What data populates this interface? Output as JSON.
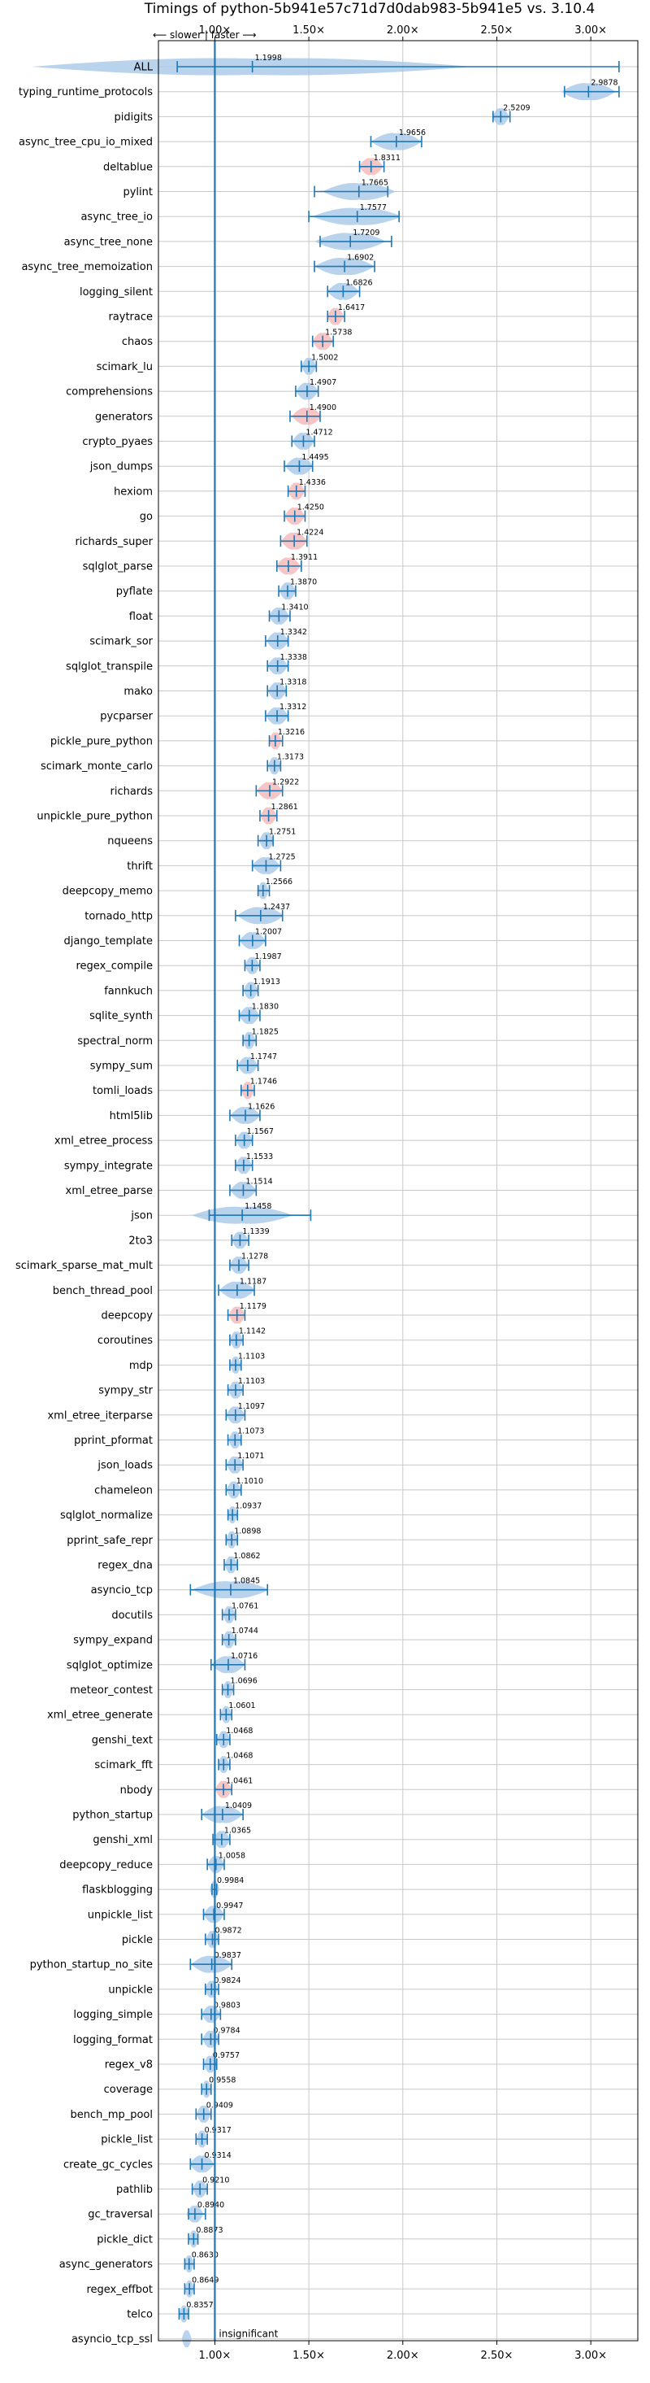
{
  "chart_data": {
    "type": "violin",
    "title": "Timings of python-5b941e57c71d7d0dab983-5b941e5 vs. 3.10.4",
    "direction_note": "⟵ slower | faster ⟶",
    "xlim": [
      0.7,
      3.25
    ],
    "xticks": [
      1.0,
      1.5,
      2.0,
      2.5,
      3.0
    ],
    "xtick_labels": [
      "1.00×",
      "1.50×",
      "2.00×",
      "2.50×",
      "3.00×"
    ],
    "grid": true,
    "colors": {
      "violin": "#a8c8e8",
      "violin_highlight": "#f4b8b8",
      "whisker": "#1f77b4",
      "baseline": "#1f77b4",
      "grid": "#c8c8c8"
    },
    "annotations": [
      {
        "benchmark": "asyncio_tcp_ssl",
        "text": "insignificant"
      }
    ],
    "benchmarks": [
      {
        "name": "ALL",
        "value": 1.1998,
        "min": 0.8,
        "max": 3.15,
        "highlight": false
      },
      {
        "name": "typing_runtime_protocols",
        "value": 2.9878,
        "min": 2.86,
        "max": 3.15,
        "highlight": false
      },
      {
        "name": "pidigits",
        "value": 2.5209,
        "min": 2.48,
        "max": 2.57,
        "highlight": false
      },
      {
        "name": "async_tree_cpu_io_mixed",
        "value": 1.9656,
        "min": 1.83,
        "max": 2.1,
        "highlight": false
      },
      {
        "name": "deltablue",
        "value": 1.8311,
        "min": 1.77,
        "max": 1.9,
        "highlight": true
      },
      {
        "name": "pylint",
        "value": 1.7665,
        "min": 1.53,
        "max": 1.92,
        "highlight": false
      },
      {
        "name": "async_tree_io",
        "value": 1.7577,
        "min": 1.5,
        "max": 1.98,
        "highlight": false
      },
      {
        "name": "async_tree_none",
        "value": 1.7209,
        "min": 1.56,
        "max": 1.94,
        "highlight": false
      },
      {
        "name": "async_tree_memoization",
        "value": 1.6902,
        "min": 1.53,
        "max": 1.85,
        "highlight": false
      },
      {
        "name": "logging_silent",
        "value": 1.6826,
        "min": 1.6,
        "max": 1.77,
        "highlight": false
      },
      {
        "name": "raytrace",
        "value": 1.6417,
        "min": 1.6,
        "max": 1.69,
        "highlight": true
      },
      {
        "name": "chaos",
        "value": 1.5738,
        "min": 1.52,
        "max": 1.63,
        "highlight": true
      },
      {
        "name": "scimark_lu",
        "value": 1.5002,
        "min": 1.46,
        "max": 1.54,
        "highlight": false
      },
      {
        "name": "comprehensions",
        "value": 1.4907,
        "min": 1.43,
        "max": 1.55,
        "highlight": false
      },
      {
        "name": "generators",
        "value": 1.49,
        "min": 1.4,
        "max": 1.56,
        "highlight": true
      },
      {
        "name": "crypto_pyaes",
        "value": 1.4712,
        "min": 1.41,
        "max": 1.53,
        "highlight": false
      },
      {
        "name": "json_dumps",
        "value": 1.4495,
        "min": 1.37,
        "max": 1.52,
        "highlight": false
      },
      {
        "name": "hexiom",
        "value": 1.4336,
        "min": 1.39,
        "max": 1.48,
        "highlight": true
      },
      {
        "name": "go",
        "value": 1.425,
        "min": 1.37,
        "max": 1.48,
        "highlight": true
      },
      {
        "name": "richards_super",
        "value": 1.4224,
        "min": 1.35,
        "max": 1.49,
        "highlight": true
      },
      {
        "name": "sqlglot_parse",
        "value": 1.3911,
        "min": 1.33,
        "max": 1.46,
        "highlight": true
      },
      {
        "name": "pyflate",
        "value": 1.387,
        "min": 1.34,
        "max": 1.43,
        "highlight": false
      },
      {
        "name": "float",
        "value": 1.341,
        "min": 1.29,
        "max": 1.4,
        "highlight": false
      },
      {
        "name": "scimark_sor",
        "value": 1.3342,
        "min": 1.27,
        "max": 1.39,
        "highlight": false
      },
      {
        "name": "sqlglot_transpile",
        "value": 1.3338,
        "min": 1.28,
        "max": 1.39,
        "highlight": false
      },
      {
        "name": "mako",
        "value": 1.3318,
        "min": 1.28,
        "max": 1.38,
        "highlight": false
      },
      {
        "name": "pycparser",
        "value": 1.3312,
        "min": 1.27,
        "max": 1.39,
        "highlight": false
      },
      {
        "name": "pickle_pure_python",
        "value": 1.3216,
        "min": 1.29,
        "max": 1.36,
        "highlight": true
      },
      {
        "name": "scimark_monte_carlo",
        "value": 1.3173,
        "min": 1.28,
        "max": 1.35,
        "highlight": false
      },
      {
        "name": "richards",
        "value": 1.2922,
        "min": 1.22,
        "max": 1.36,
        "highlight": true
      },
      {
        "name": "unpickle_pure_python",
        "value": 1.2861,
        "min": 1.24,
        "max": 1.33,
        "highlight": true
      },
      {
        "name": "nqueens",
        "value": 1.2751,
        "min": 1.23,
        "max": 1.31,
        "highlight": false
      },
      {
        "name": "thrift",
        "value": 1.2725,
        "min": 1.2,
        "max": 1.35,
        "highlight": false
      },
      {
        "name": "deepcopy_memo",
        "value": 1.2566,
        "min": 1.23,
        "max": 1.29,
        "highlight": false
      },
      {
        "name": "tornado_http",
        "value": 1.2437,
        "min": 1.11,
        "max": 1.36,
        "highlight": false
      },
      {
        "name": "django_template",
        "value": 1.2007,
        "min": 1.13,
        "max": 1.27,
        "highlight": false
      },
      {
        "name": "regex_compile",
        "value": 1.1987,
        "min": 1.16,
        "max": 1.24,
        "highlight": false
      },
      {
        "name": "fannkuch",
        "value": 1.1913,
        "min": 1.15,
        "max": 1.23,
        "highlight": false
      },
      {
        "name": "sqlite_synth",
        "value": 1.183,
        "min": 1.13,
        "max": 1.24,
        "highlight": false
      },
      {
        "name": "spectral_norm",
        "value": 1.1825,
        "min": 1.15,
        "max": 1.22,
        "highlight": false
      },
      {
        "name": "sympy_sum",
        "value": 1.1747,
        "min": 1.12,
        "max": 1.23,
        "highlight": false
      },
      {
        "name": "tomli_loads",
        "value": 1.1746,
        "min": 1.14,
        "max": 1.21,
        "highlight": true
      },
      {
        "name": "html5lib",
        "value": 1.1626,
        "min": 1.08,
        "max": 1.24,
        "highlight": false
      },
      {
        "name": "xml_etree_process",
        "value": 1.1567,
        "min": 1.11,
        "max": 1.2,
        "highlight": false
      },
      {
        "name": "sympy_integrate",
        "value": 1.1533,
        "min": 1.11,
        "max": 1.2,
        "highlight": false
      },
      {
        "name": "xml_etree_parse",
        "value": 1.1514,
        "min": 1.08,
        "max": 1.22,
        "highlight": false
      },
      {
        "name": "json",
        "value": 1.1458,
        "min": 0.97,
        "max": 1.51,
        "highlight": false
      },
      {
        "name": "2to3",
        "value": 1.1339,
        "min": 1.09,
        "max": 1.18,
        "highlight": false
      },
      {
        "name": "scimark_sparse_mat_mult",
        "value": 1.1278,
        "min": 1.08,
        "max": 1.18,
        "highlight": false
      },
      {
        "name": "bench_thread_pool",
        "value": 1.1187,
        "min": 1.02,
        "max": 1.21,
        "highlight": false
      },
      {
        "name": "deepcopy",
        "value": 1.1179,
        "min": 1.07,
        "max": 1.16,
        "highlight": true
      },
      {
        "name": "coroutines",
        "value": 1.1142,
        "min": 1.08,
        "max": 1.15,
        "highlight": false
      },
      {
        "name": "mdp",
        "value": 1.1103,
        "min": 1.08,
        "max": 1.14,
        "highlight": false
      },
      {
        "name": "sympy_str",
        "value": 1.1103,
        "min": 1.07,
        "max": 1.15,
        "highlight": false
      },
      {
        "name": "xml_etree_iterparse",
        "value": 1.1097,
        "min": 1.06,
        "max": 1.16,
        "highlight": false
      },
      {
        "name": "pprint_pformat",
        "value": 1.1073,
        "min": 1.07,
        "max": 1.14,
        "highlight": false
      },
      {
        "name": "json_loads",
        "value": 1.1071,
        "min": 1.06,
        "max": 1.15,
        "highlight": false
      },
      {
        "name": "chameleon",
        "value": 1.101,
        "min": 1.06,
        "max": 1.14,
        "highlight": false
      },
      {
        "name": "sqlglot_normalize",
        "value": 1.0937,
        "min": 1.07,
        "max": 1.12,
        "highlight": false
      },
      {
        "name": "pprint_safe_repr",
        "value": 1.0898,
        "min": 1.06,
        "max": 1.12,
        "highlight": false
      },
      {
        "name": "regex_dna",
        "value": 1.0862,
        "min": 1.05,
        "max": 1.12,
        "highlight": false
      },
      {
        "name": "asyncio_tcp",
        "value": 1.0845,
        "min": 0.87,
        "max": 1.28,
        "highlight": false
      },
      {
        "name": "docutils",
        "value": 1.0761,
        "min": 1.04,
        "max": 1.11,
        "highlight": false
      },
      {
        "name": "sympy_expand",
        "value": 1.0744,
        "min": 1.04,
        "max": 1.11,
        "highlight": false
      },
      {
        "name": "sqlglot_optimize",
        "value": 1.0716,
        "min": 0.98,
        "max": 1.16,
        "highlight": false
      },
      {
        "name": "meteor_contest",
        "value": 1.0696,
        "min": 1.04,
        "max": 1.1,
        "highlight": false
      },
      {
        "name": "xml_etree_generate",
        "value": 1.0601,
        "min": 1.03,
        "max": 1.09,
        "highlight": false
      },
      {
        "name": "genshi_text",
        "value": 1.0468,
        "min": 1.01,
        "max": 1.08,
        "highlight": false
      },
      {
        "name": "scimark_fft",
        "value": 1.0468,
        "min": 1.02,
        "max": 1.08,
        "highlight": false
      },
      {
        "name": "nbody",
        "value": 1.0461,
        "min": 1.0,
        "max": 1.09,
        "highlight": true
      },
      {
        "name": "python_startup",
        "value": 1.0409,
        "min": 0.93,
        "max": 1.15,
        "highlight": false
      },
      {
        "name": "genshi_xml",
        "value": 1.0365,
        "min": 0.99,
        "max": 1.08,
        "highlight": false
      },
      {
        "name": "deepcopy_reduce",
        "value": 1.0058,
        "min": 0.96,
        "max": 1.05,
        "highlight": false
      },
      {
        "name": "flaskblogging",
        "value": 0.9984,
        "min": 0.985,
        "max": 1.01,
        "highlight": false
      },
      {
        "name": "unpickle_list",
        "value": 0.9947,
        "min": 0.94,
        "max": 1.05,
        "highlight": false
      },
      {
        "name": "pickle",
        "value": 0.9872,
        "min": 0.95,
        "max": 1.02,
        "highlight": false
      },
      {
        "name": "python_startup_no_site",
        "value": 0.9837,
        "min": 0.87,
        "max": 1.09,
        "highlight": false
      },
      {
        "name": "unpickle",
        "value": 0.9824,
        "min": 0.95,
        "max": 1.02,
        "highlight": false
      },
      {
        "name": "logging_simple",
        "value": 0.9803,
        "min": 0.93,
        "max": 1.03,
        "highlight": false
      },
      {
        "name": "logging_format",
        "value": 0.9784,
        "min": 0.93,
        "max": 1.02,
        "highlight": false
      },
      {
        "name": "regex_v8",
        "value": 0.9757,
        "min": 0.94,
        "max": 1.01,
        "highlight": false
      },
      {
        "name": "coverage",
        "value": 0.9558,
        "min": 0.93,
        "max": 0.98,
        "highlight": false
      },
      {
        "name": "bench_mp_pool",
        "value": 0.9409,
        "min": 0.9,
        "max": 0.98,
        "highlight": false
      },
      {
        "name": "pickle_list",
        "value": 0.9317,
        "min": 0.9,
        "max": 0.96,
        "highlight": false
      },
      {
        "name": "create_gc_cycles",
        "value": 0.9314,
        "min": 0.87,
        "max": 1.0,
        "highlight": false
      },
      {
        "name": "pathlib",
        "value": 0.921,
        "min": 0.88,
        "max": 0.96,
        "highlight": false
      },
      {
        "name": "gc_traversal",
        "value": 0.894,
        "min": 0.86,
        "max": 0.95,
        "highlight": false
      },
      {
        "name": "pickle_dict",
        "value": 0.8873,
        "min": 0.86,
        "max": 0.91,
        "highlight": false
      },
      {
        "name": "async_generators",
        "value": 0.863,
        "min": 0.84,
        "max": 0.89,
        "highlight": false
      },
      {
        "name": "regex_effbot",
        "value": 0.8649,
        "min": 0.84,
        "max": 0.89,
        "highlight": false
      },
      {
        "name": "telco",
        "value": 0.8357,
        "min": 0.81,
        "max": 0.86,
        "highlight": false
      },
      {
        "name": "asyncio_tcp_ssl",
        "value": 0.85,
        "min": 0.835,
        "max": 0.865,
        "highlight": false,
        "insignificant": true
      }
    ]
  }
}
